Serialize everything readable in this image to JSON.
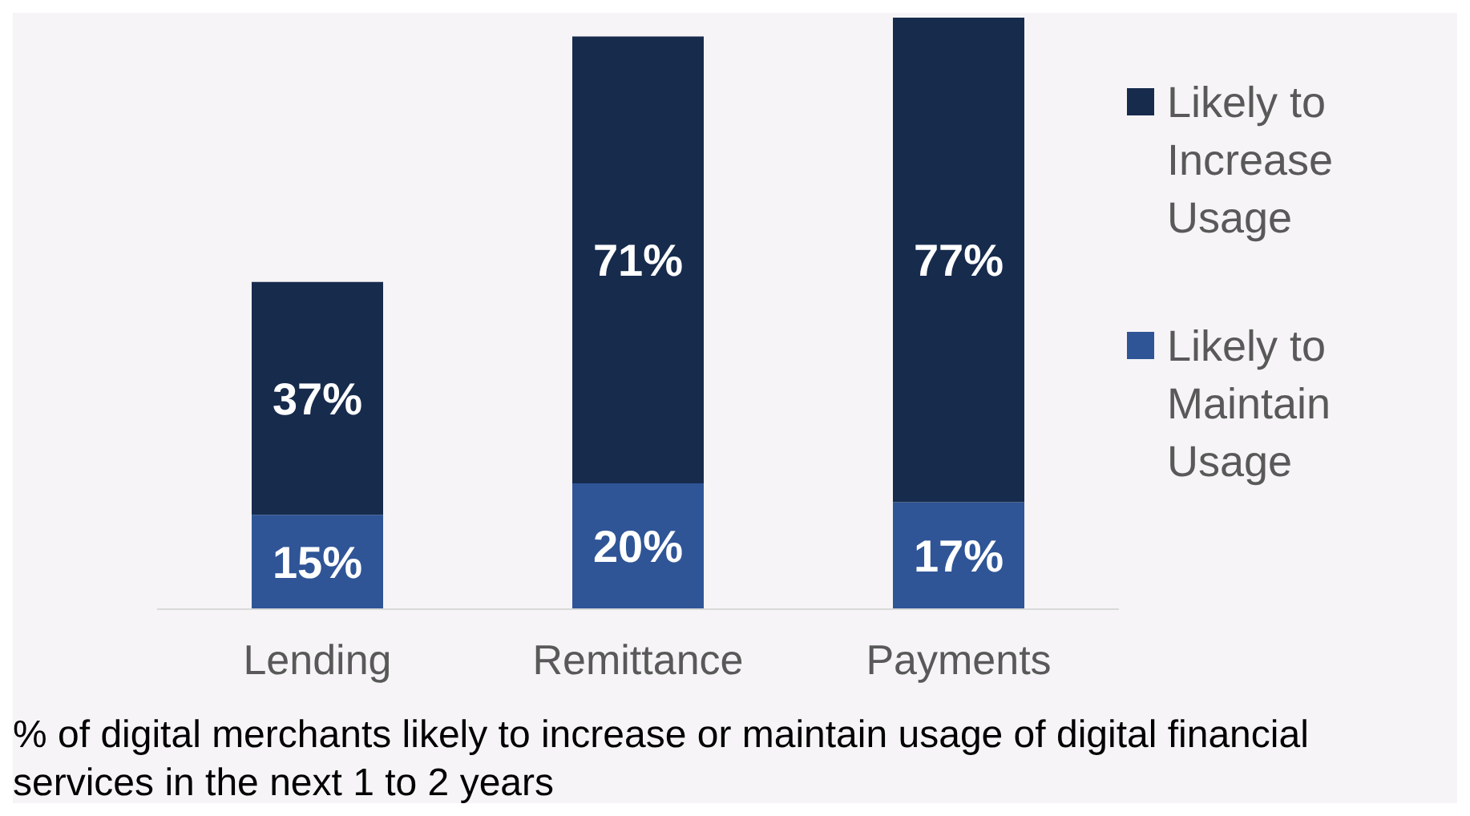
{
  "chart_data": {
    "type": "bar",
    "stacked": true,
    "categories": [
      "Lending",
      "Remittance",
      "Payments"
    ],
    "series": [
      {
        "name": "Likely to Maintain Usage",
        "color": "#2f5597",
        "values": [
          15,
          20,
          17
        ],
        "value_labels": [
          "15%",
          "20%",
          "17%"
        ]
      },
      {
        "name": "Likely to Increase Usage",
        "color": "#172b4d",
        "values": [
          37,
          71,
          77
        ],
        "value_labels": [
          "37%",
          "71%",
          "77%"
        ]
      }
    ],
    "legend": "right",
    "annotations": [
      "% of digital merchants likely to increase or maintain usage of digital financial services in the next 1 to 2 years"
    ]
  }
}
